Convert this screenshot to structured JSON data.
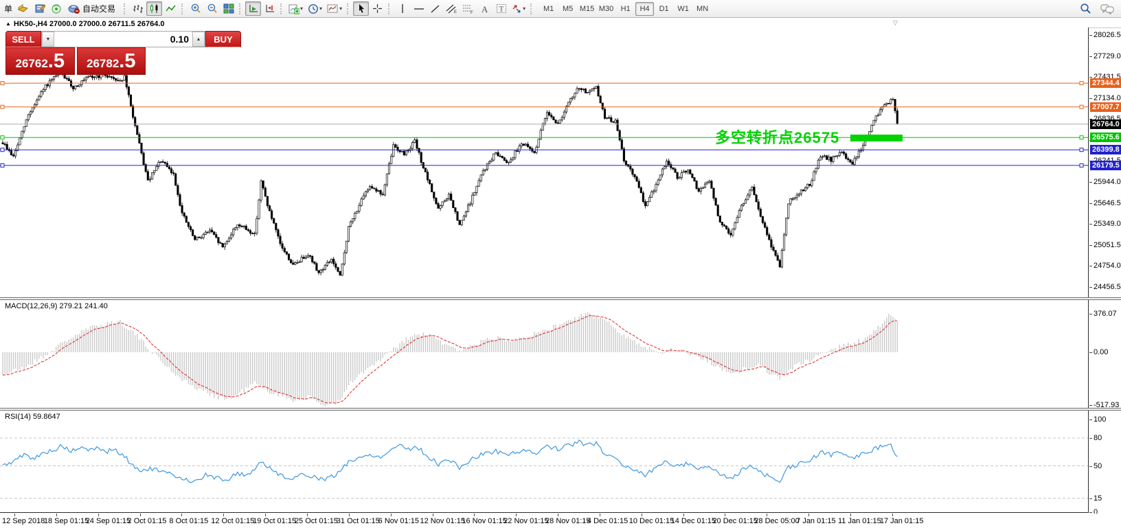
{
  "toolbar": {
    "order_char": "单",
    "autotrade_label": "自动交易",
    "timeframes": [
      "M1",
      "M5",
      "M15",
      "M30",
      "H1",
      "H4",
      "D1",
      "W1",
      "MN"
    ],
    "active_timeframe": "H4"
  },
  "chart": {
    "collapse_marker": "▲",
    "caption": "HK50-,H4  27000.0 27000.0 26711.5 26764.0",
    "shift_marker": "▽"
  },
  "trade_panel": {
    "sell_label": "SELL",
    "buy_label": "BUY",
    "volume": "0.10",
    "spinner_down": "▼",
    "spinner_up": "▲",
    "sell_price_int": "26762",
    "sell_price_dec": ".5",
    "buy_price_int": "26782",
    "buy_price_dec": ".5"
  },
  "annotation": {
    "text": "多空转折点26575",
    "color": "#00d300"
  },
  "panes": {
    "macd_label": "MACD(12,26,9) 279.21 241.40",
    "rsi_label": "RSI(14) 59.8647"
  },
  "colors": {
    "orange_line": "#e8611c",
    "blue_line": "#2121cc",
    "green_line": "#00c400",
    "current_price_bg": "#000000",
    "panel_red": "#c21414",
    "macd_histogram": "#c9c9c9",
    "macd_signal": "#e02020",
    "rsi_line": "#3b97e3"
  },
  "chart_data": [
    {
      "type": "candlestick",
      "symbol": "HK50-",
      "period": "H4",
      "ohlc_current": {
        "open": 27000.0,
        "high": 27000.0,
        "low": 26711.5,
        "close": 26764.0
      },
      "y_ticks": [
        28026.5,
        27729.0,
        27431.5,
        27134.0,
        26836.5,
        26539.0,
        26241.5,
        25944.0,
        25646.5,
        25349.0,
        25051.5,
        24754.0,
        24456.5
      ],
      "num_candles": 420,
      "last_close": 26764.0,
      "noise": 55,
      "wick": 42,
      "price_path_anchors": [
        [
          0,
          26500
        ],
        [
          5,
          26300
        ],
        [
          12,
          26900
        ],
        [
          20,
          27300
        ],
        [
          27,
          27500
        ],
        [
          33,
          27280
        ],
        [
          40,
          27420
        ],
        [
          48,
          27460
        ],
        [
          55,
          27380
        ],
        [
          57,
          27430
        ],
        [
          63,
          26600
        ],
        [
          68,
          25950
        ],
        [
          74,
          26250
        ],
        [
          80,
          26050
        ],
        [
          84,
          25500
        ],
        [
          90,
          25120
        ],
        [
          97,
          25260
        ],
        [
          103,
          25020
        ],
        [
          110,
          25350
        ],
        [
          118,
          25200
        ],
        [
          121,
          25950
        ],
        [
          125,
          25520
        ],
        [
          130,
          25060
        ],
        [
          136,
          24760
        ],
        [
          143,
          24930
        ],
        [
          148,
          24660
        ],
        [
          154,
          24850
        ],
        [
          158,
          24600
        ],
        [
          162,
          25300
        ],
        [
          167,
          25620
        ],
        [
          172,
          25900
        ],
        [
          178,
          25760
        ],
        [
          183,
          26460
        ],
        [
          188,
          26340
        ],
        [
          193,
          26520
        ],
        [
          198,
          26060
        ],
        [
          204,
          25560
        ],
        [
          209,
          25760
        ],
        [
          214,
          25320
        ],
        [
          219,
          25660
        ],
        [
          225,
          26100
        ],
        [
          231,
          26360
        ],
        [
          237,
          26220
        ],
        [
          243,
          26500
        ],
        [
          249,
          26360
        ],
        [
          255,
          26950
        ],
        [
          260,
          26760
        ],
        [
          265,
          27060
        ],
        [
          270,
          27290
        ],
        [
          274,
          27200
        ],
        [
          278,
          27280
        ],
        [
          282,
          26860
        ],
        [
          287,
          26800
        ],
        [
          291,
          26260
        ],
        [
          296,
          26010
        ],
        [
          301,
          25610
        ],
        [
          306,
          25900
        ],
        [
          311,
          26250
        ],
        [
          316,
          26010
        ],
        [
          321,
          26110
        ],
        [
          326,
          25810
        ],
        [
          331,
          25960
        ],
        [
          336,
          25360
        ],
        [
          341,
          25210
        ],
        [
          346,
          25610
        ],
        [
          351,
          25860
        ],
        [
          356,
          25360
        ],
        [
          361,
          24960
        ],
        [
          364,
          24760
        ],
        [
          368,
          25650
        ],
        [
          373,
          25800
        ],
        [
          378,
          25910
        ],
        [
          383,
          26310
        ],
        [
          388,
          26260
        ],
        [
          393,
          26360
        ],
        [
          398,
          26210
        ],
        [
          403,
          26460
        ],
        [
          408,
          26810
        ],
        [
          413,
          27050
        ],
        [
          417,
          27110
        ],
        [
          419,
          26764
        ]
      ],
      "horizontal_lines": [
        {
          "price": 27344.4,
          "color": "#e8611c",
          "label_bg": "#e8611c",
          "handles": true
        },
        {
          "price": 27007.7,
          "color": "#e8611c",
          "label_bg": "#e8611c",
          "handles": true
        },
        {
          "price": 26764.0,
          "color": "#ababab",
          "label_bg": "#000000",
          "handles": false
        },
        {
          "price": 26575.6,
          "color": "#00c400",
          "label_bg": "#00c400",
          "handles": true
        },
        {
          "price": 26399.8,
          "color": "#2121cc",
          "label_bg": "#2121cc",
          "handles": true
        },
        {
          "price": 26179.5,
          "color": "#2121cc",
          "label_bg": "#2121cc",
          "handles": true
        }
      ]
    },
    {
      "type": "macd",
      "name": "MACD(12,26,9)",
      "current_macd": 279.21,
      "current_signal": 241.4,
      "y_ticks": [
        376.07,
        0.0,
        -517.93
      ],
      "anchors": [
        [
          0,
          -220
        ],
        [
          10,
          -150
        ],
        [
          20,
          -30
        ],
        [
          30,
          120
        ],
        [
          40,
          230
        ],
        [
          50,
          290
        ],
        [
          55,
          300
        ],
        [
          62,
          180
        ],
        [
          70,
          0
        ],
        [
          80,
          -200
        ],
        [
          90,
          -350
        ],
        [
          100,
          -430
        ],
        [
          105,
          -460
        ],
        [
          111,
          -400
        ],
        [
          118,
          -300
        ],
        [
          124,
          -380
        ],
        [
          130,
          -420
        ],
        [
          136,
          -470
        ],
        [
          143,
          -440
        ],
        [
          150,
          -515
        ],
        [
          158,
          -480
        ],
        [
          163,
          -300
        ],
        [
          170,
          -180
        ],
        [
          178,
          -60
        ],
        [
          185,
          60
        ],
        [
          190,
          140
        ],
        [
          196,
          180
        ],
        [
          202,
          150
        ],
        [
          208,
          60
        ],
        [
          214,
          20
        ],
        [
          220,
          60
        ],
        [
          226,
          120
        ],
        [
          232,
          140
        ],
        [
          238,
          130
        ],
        [
          244,
          150
        ],
        [
          250,
          180
        ],
        [
          256,
          230
        ],
        [
          262,
          280
        ],
        [
          268,
          330
        ],
        [
          273,
          370
        ],
        [
          278,
          350
        ],
        [
          283,
          300
        ],
        [
          288,
          220
        ],
        [
          293,
          140
        ],
        [
          298,
          80
        ],
        [
          303,
          30
        ],
        [
          308,
          0
        ],
        [
          313,
          30
        ],
        [
          318,
          10
        ],
        [
          323,
          -30
        ],
        [
          328,
          -60
        ],
        [
          333,
          -120
        ],
        [
          338,
          -180
        ],
        [
          343,
          -200
        ],
        [
          348,
          -160
        ],
        [
          353,
          -120
        ],
        [
          358,
          -180
        ],
        [
          361,
          -230
        ],
        [
          364,
          -250
        ],
        [
          368,
          -180
        ],
        [
          373,
          -120
        ],
        [
          378,
          -80
        ],
        [
          383,
          -20
        ],
        [
          388,
          20
        ],
        [
          393,
          60
        ],
        [
          398,
          80
        ],
        [
          403,
          120
        ],
        [
          408,
          200
        ],
        [
          413,
          300
        ],
        [
          416,
          376
        ],
        [
          419,
          279
        ]
      ]
    },
    {
      "type": "rsi",
      "name": "RSI(14)",
      "current": 59.8647,
      "levels": [
        80,
        50,
        15
      ],
      "y_ticks": [
        100,
        80,
        50,
        15,
        0
      ],
      "anchors": [
        [
          0,
          50
        ],
        [
          5,
          55
        ],
        [
          10,
          62
        ],
        [
          15,
          58
        ],
        [
          20,
          65
        ],
        [
          25,
          68
        ],
        [
          28,
          72
        ],
        [
          32,
          65
        ],
        [
          36,
          70
        ],
        [
          40,
          66
        ],
        [
          44,
          70
        ],
        [
          48,
          65
        ],
        [
          52,
          68
        ],
        [
          57,
          60
        ],
        [
          62,
          48
        ],
        [
          66,
          45
        ],
        [
          70,
          47
        ],
        [
          75,
          43
        ],
        [
          80,
          40
        ],
        [
          85,
          36
        ],
        [
          90,
          33
        ],
        [
          95,
          40
        ],
        [
          100,
          37
        ],
        [
          105,
          35
        ],
        [
          110,
          42
        ],
        [
          115,
          40
        ],
        [
          121,
          55
        ],
        [
          126,
          45
        ],
        [
          131,
          40
        ],
        [
          136,
          35
        ],
        [
          141,
          42
        ],
        [
          146,
          38
        ],
        [
          151,
          35
        ],
        [
          156,
          40
        ],
        [
          162,
          55
        ],
        [
          167,
          58
        ],
        [
          172,
          62
        ],
        [
          178,
          60
        ],
        [
          183,
          70
        ],
        [
          186,
          73
        ],
        [
          190,
          68
        ],
        [
          194,
          71
        ],
        [
          198,
          62
        ],
        [
          204,
          52
        ],
        [
          209,
          57
        ],
        [
          214,
          48
        ],
        [
          219,
          56
        ],
        [
          225,
          63
        ],
        [
          231,
          66
        ],
        [
          237,
          62
        ],
        [
          243,
          67
        ],
        [
          249,
          63
        ],
        [
          255,
          72
        ],
        [
          260,
          68
        ],
        [
          265,
          72
        ],
        [
          270,
          76
        ],
        [
          274,
          72
        ],
        [
          278,
          75
        ],
        [
          282,
          62
        ],
        [
          287,
          60
        ],
        [
          291,
          50
        ],
        [
          296,
          46
        ],
        [
          301,
          40
        ],
        [
          306,
          48
        ],
        [
          311,
          55
        ],
        [
          316,
          50
        ],
        [
          321,
          53
        ],
        [
          326,
          47
        ],
        [
          331,
          50
        ],
        [
          336,
          40
        ],
        [
          341,
          37
        ],
        [
          346,
          45
        ],
        [
          351,
          50
        ],
        [
          356,
          42
        ],
        [
          361,
          35
        ],
        [
          364,
          33
        ],
        [
          368,
          48
        ],
        [
          373,
          52
        ],
        [
          378,
          55
        ],
        [
          383,
          65
        ],
        [
          388,
          62
        ],
        [
          393,
          65
        ],
        [
          398,
          58
        ],
        [
          403,
          63
        ],
        [
          408,
          68
        ],
        [
          413,
          72
        ],
        [
          416,
          74
        ],
        [
          419,
          60
        ]
      ]
    }
  ],
  "time_axis": {
    "labels": [
      "12 Sep 2018",
      "18 Sep 01:15",
      "24 Sep 01:15",
      "2 Oct 01:15",
      "8 Oct 01:15",
      "12 Oct 01:15",
      "19 Oct 01:15",
      "25 Oct 01:15",
      "31 Oct 01:15",
      "6 Nov 01:15",
      "12 Nov 01:15",
      "16 Nov 01:15",
      "22 Nov 01:15",
      "28 Nov 01:15",
      "4 Dec 01:15",
      "10 Dec 01:15",
      "14 Dec 01:15",
      "20 Dec 01:15",
      "28 Dec 05:00",
      "7 Jan 01:15",
      "11 Jan 01:15",
      "17 Jan 01:15"
    ]
  }
}
